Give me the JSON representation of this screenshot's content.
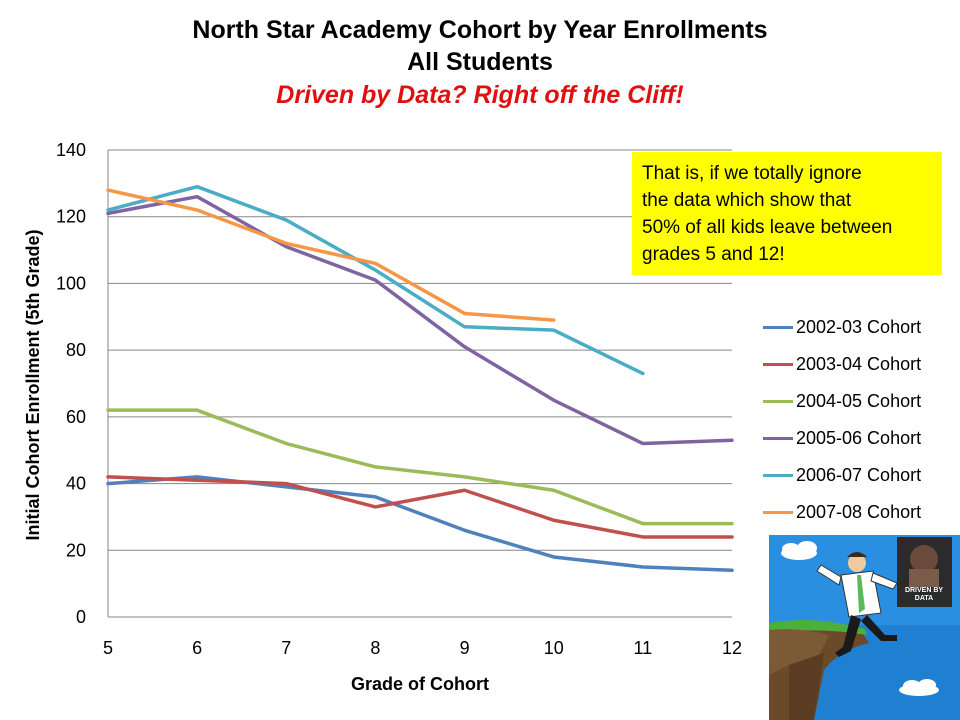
{
  "title": {
    "line1": "North Star Academy Cohort by Year Enrollments",
    "line2": "All Students",
    "line3": "Driven by Data? Right off the Cliff!"
  },
  "callout": {
    "lines": [
      "That is, if we totally ignore",
      "the data which show that",
      "50% of all kids leave between",
      "grades 5 and 12!"
    ]
  },
  "illustration": {
    "book_title_line1": "DRIVEN BY",
    "book_title_line2": "DATA"
  },
  "chart_data": {
    "type": "line",
    "title": "North Star Academy Cohort by Year Enrollments",
    "xlabel": "Grade of Cohort",
    "ylabel": "Initial Cohort Enrollment (5th Grade)",
    "x": [
      5,
      6,
      7,
      8,
      9,
      10,
      11,
      12
    ],
    "xlim": [
      5,
      12
    ],
    "ylim": [
      0,
      140
    ],
    "yticks": [
      0,
      20,
      40,
      60,
      80,
      100,
      120,
      140
    ],
    "grid": true,
    "legend_position": "right",
    "series": [
      {
        "name": "2002-03 Cohort",
        "color": "#4f81bd",
        "values": [
          40,
          42,
          39,
          36,
          26,
          18,
          15,
          14
        ]
      },
      {
        "name": "2003-04 Cohort",
        "color": "#c0504d",
        "values": [
          42,
          41,
          40,
          33,
          38,
          29,
          24,
          24
        ]
      },
      {
        "name": "2004-05 Cohort",
        "color": "#9bbb59",
        "values": [
          62,
          62,
          52,
          45,
          42,
          38,
          28,
          28
        ]
      },
      {
        "name": "2005-06 Cohort",
        "color": "#8064a2",
        "values": [
          121,
          126,
          111,
          101,
          81,
          65,
          52,
          53
        ]
      },
      {
        "name": "2006-07 Cohort",
        "color": "#4bacc6",
        "values": [
          122,
          129,
          119,
          104,
          87,
          86,
          73,
          null
        ]
      },
      {
        "name": "2007-08 Cohort",
        "color": "#f79646",
        "values": [
          128,
          122,
          112,
          106,
          91,
          89,
          null,
          null
        ]
      }
    ]
  }
}
